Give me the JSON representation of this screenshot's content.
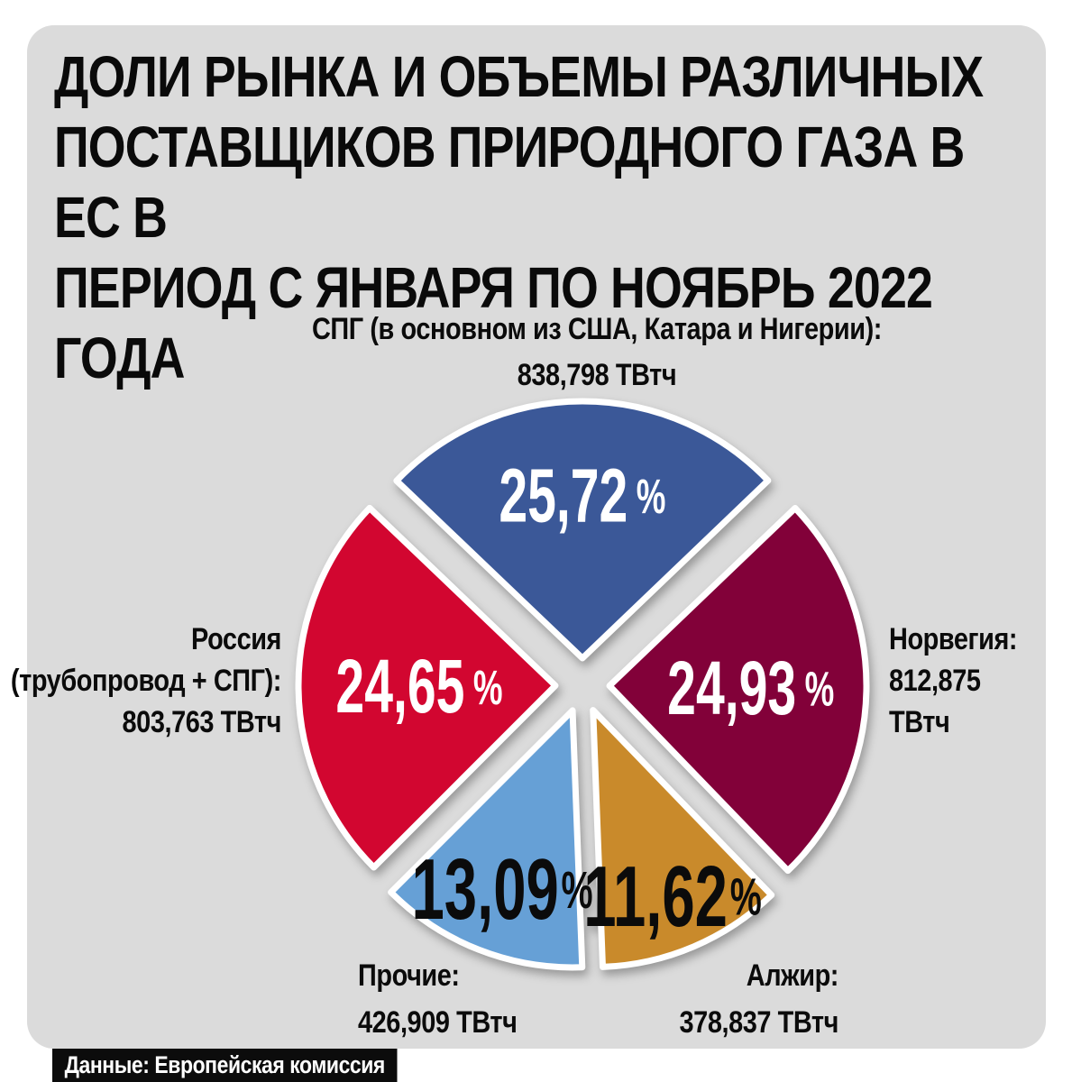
{
  "page": {
    "background": "#ffffff",
    "card_background": "#dbdbdb",
    "text_color": "#0b0b0b"
  },
  "title": {
    "text": "ДОЛИ РЫНКА И ОБЪЕМЫ РАЗЛИЧНЫХ\nПОСТАВЩИКОВ ПРИРОДНОГО ГАЗА В ЕС В\nПЕРИОД С ЯНВАРЯ ПО НОЯБРЬ 2022 ГОДА"
  },
  "source": {
    "label": "Данные: Европейская комиссия",
    "background": "#0c0c0c",
    "color": "#ffffff"
  },
  "chart_data": {
    "type": "pie",
    "unit": "ТВтч",
    "percent_sign": "%",
    "start_angle_deg": -46.33,
    "exploded": true,
    "slices": [
      {
        "name": "СПГ",
        "callout": "СПГ (в основном из США, Катара и Нигерии):\n838,798 ТВтч",
        "percent": 25.72,
        "percent_label": "25,72",
        "volume_twh": 838.798,
        "volume_label": "838,798 ТВтч",
        "color": "#3b5898",
        "value_text_color": "#ffffff"
      },
      {
        "name": "Норвегия",
        "callout": "Норвегия:\n812,875\nТВтч",
        "percent": 24.93,
        "percent_label": "24,93",
        "volume_twh": 812.875,
        "volume_label": "812,875 ТВтч",
        "color": "#820139",
        "value_text_color": "#ffffff"
      },
      {
        "name": "Алжир",
        "callout": "Алжир:\n378,837 ТВтч",
        "percent": 11.62,
        "percent_label": "11,62",
        "volume_twh": 378.837,
        "volume_label": "378,837 ТВтч",
        "color": "#c98a2b",
        "value_text_color": "#0b0b0b"
      },
      {
        "name": "Прочие",
        "callout": "Прочие:\n426,909 ТВтч",
        "percent": 13.09,
        "percent_label": "13,09",
        "volume_twh": 426.909,
        "volume_label": "426,909 ТВтч",
        "color": "#66a0d6",
        "value_text_color": "#0b0b0b"
      },
      {
        "name": "Россия",
        "callout": "Россия\n(трубопровод + СПГ):\n803,763 ТВтч",
        "percent": 24.65,
        "percent_label": "24,65",
        "volume_twh": 803.763,
        "volume_label": "803,763 ТВтч",
        "color": "#d20630",
        "value_text_color": "#ffffff"
      }
    ]
  }
}
